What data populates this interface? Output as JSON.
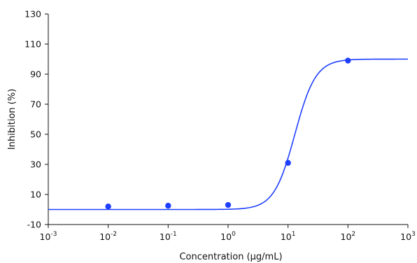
{
  "chart_data": {
    "type": "scatter",
    "xlabel": "Concentration (µg/mL)",
    "ylabel": "Inhibition (%)",
    "x_scale": "log10",
    "xlim": [
      0.001,
      1000
    ],
    "ylim": [
      -10,
      130
    ],
    "y_ticks": [
      -10,
      10,
      30,
      50,
      70,
      90,
      110,
      130
    ],
    "x_ticks": [
      {
        "base": "10",
        "exp": "-3"
      },
      {
        "base": "10",
        "exp": "-2"
      },
      {
        "base": "10",
        "exp": "-1"
      },
      {
        "base": "10",
        "exp": "0"
      },
      {
        "base": "10",
        "exp": "1"
      },
      {
        "base": "10",
        "exp": "2"
      },
      {
        "base": "10",
        "exp": "3"
      }
    ],
    "series": [
      {
        "points": [
          {
            "x": 0.01,
            "y": 2
          },
          {
            "x": 0.1,
            "y": 2.5
          },
          {
            "x": 1,
            "y": 3
          },
          {
            "x": 10,
            "y": 31
          },
          {
            "x": 100,
            "y": 99
          }
        ]
      }
    ],
    "fit_curve": {
      "model": "four-parameter logistic",
      "bottom": 0,
      "top": 100,
      "ec50": 13,
      "hill_slope": 2.5
    },
    "colors": {
      "series": "#1f3fff",
      "axis": "#111111"
    },
    "grid": false,
    "legend": "none"
  }
}
